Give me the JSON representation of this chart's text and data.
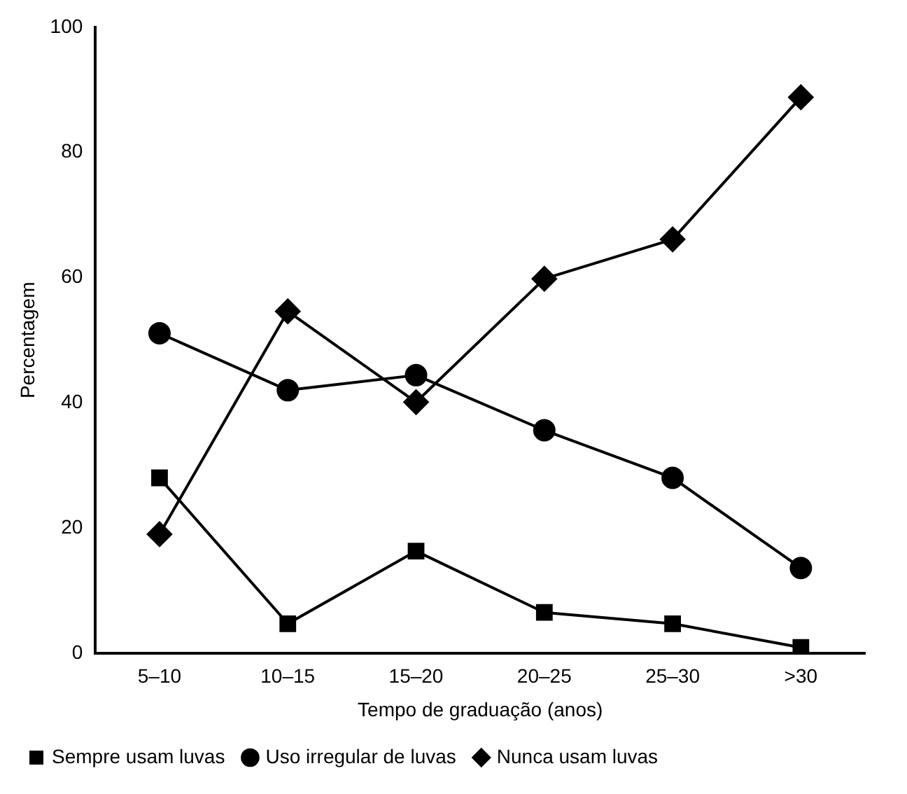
{
  "chart_data": {
    "type": "line",
    "xlabel": "Tempo de graduação (anos)",
    "ylabel": "Percentagem",
    "categories": [
      "5–10",
      "10–15",
      "15–20",
      "20–25",
      "25–30",
      ">30"
    ],
    "series": [
      {
        "name": "Sempre usam luvas",
        "color": "#000000",
        "marker": "square",
        "values": [
          28,
          4.7,
          16.3,
          6.5,
          4.7,
          0.9
        ]
      },
      {
        "name": "Uso irregular de luvas",
        "color": "#000000",
        "marker": "circle",
        "values": [
          51.1,
          42,
          44.4,
          35.6,
          28,
          13.6
        ]
      },
      {
        "name": "Nunca usam luvas",
        "color": "#000000",
        "marker": "diamond",
        "values": [
          19,
          54.6,
          40.1,
          59.8,
          66.1,
          88.8
        ]
      }
    ],
    "ylim": [
      0,
      100
    ],
    "yticks": [
      0,
      20,
      40,
      60,
      80,
      100
    ],
    "grid": false,
    "legend": "bottom",
    "line_style": "solid"
  }
}
